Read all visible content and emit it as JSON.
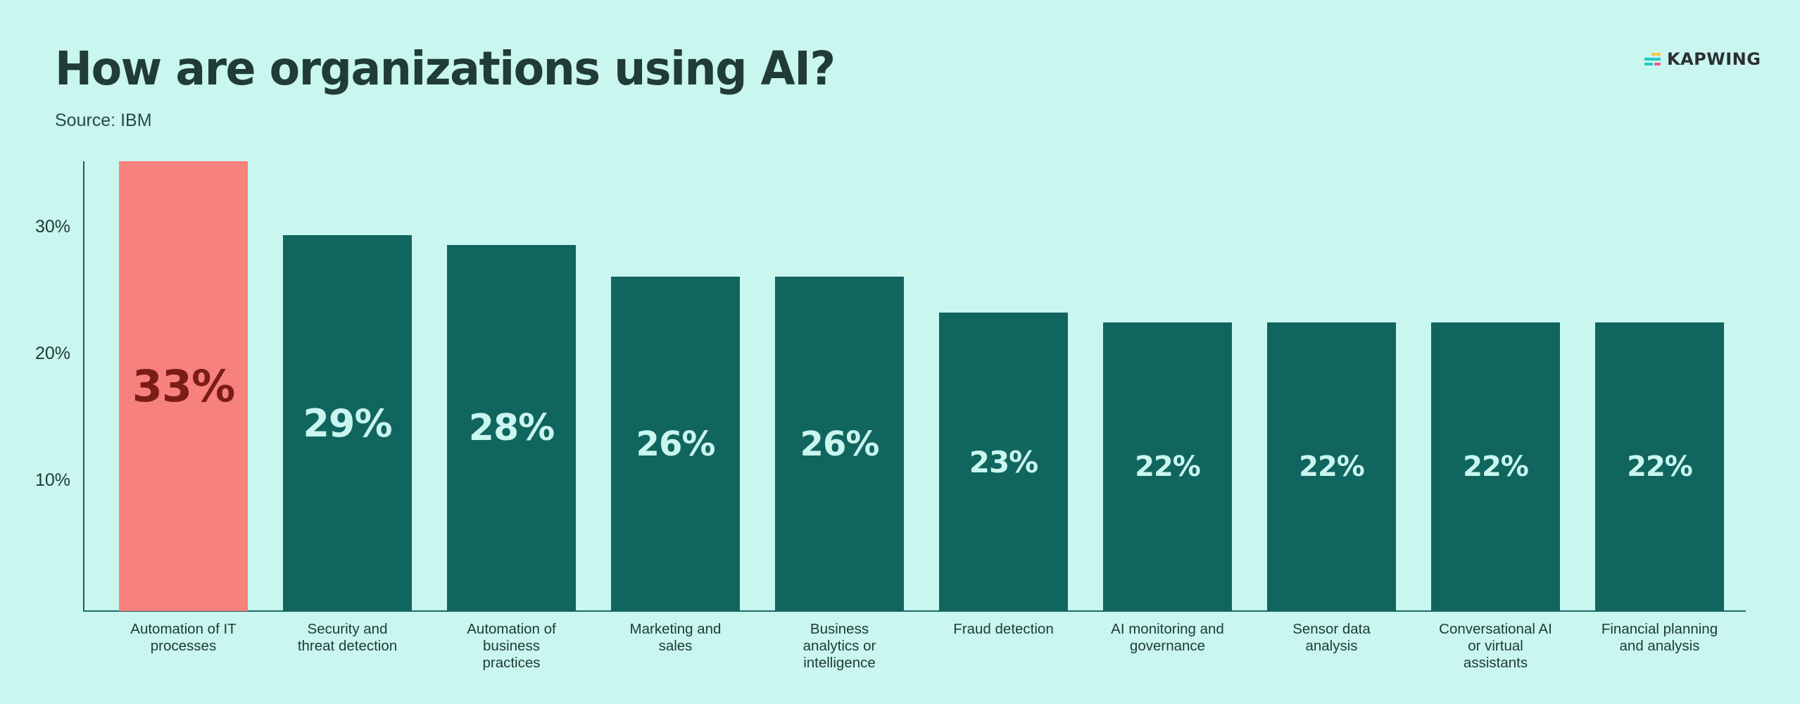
{
  "header": {
    "title": "How are organizations using AI?",
    "subtitle": "Source: IBM"
  },
  "logo": {
    "text": "KAPWING"
  },
  "colors": {
    "background": "#c9f6ef",
    "bar_default": "#11655f",
    "bar_highlight": "#f7817c",
    "label_default": "#c9f6ef",
    "label_highlight": "#7a1c17",
    "text": "#1f3a36"
  },
  "yaxis": {
    "ticks": [
      "30%",
      "20%",
      "10%"
    ]
  },
  "bars": [
    {
      "category": "Automation of IT processes",
      "label_lines": [
        "Automation of IT",
        "processes"
      ],
      "value": 33,
      "value_label": "33%",
      "highlight": true
    },
    {
      "category": "Security and threat detection",
      "label_lines": [
        "Security and",
        "threat detection"
      ],
      "value": 29,
      "value_label": "29%",
      "highlight": false
    },
    {
      "category": "Automation of business practices",
      "label_lines": [
        "Automation of",
        "business",
        "practices"
      ],
      "value": 28,
      "value_label": "28%",
      "highlight": false
    },
    {
      "category": "Marketing and sales",
      "label_lines": [
        "Marketing and",
        "sales"
      ],
      "value": 26,
      "value_label": "26%",
      "highlight": false
    },
    {
      "category": "Business analytics or intelligence",
      "label_lines": [
        "Business",
        "analytics or",
        "intelligence"
      ],
      "value": 26,
      "value_label": "26%",
      "highlight": false
    },
    {
      "category": "Fraud detection",
      "label_lines": [
        "Fraud detection"
      ],
      "value": 23,
      "value_label": "23%",
      "highlight": false
    },
    {
      "category": "AI monitoring and governance",
      "label_lines": [
        "AI monitoring and",
        "governance"
      ],
      "value": 22,
      "value_label": "22%",
      "highlight": false
    },
    {
      "category": "Sensor data analysis",
      "label_lines": [
        "Sensor data",
        "analysis"
      ],
      "value": 22,
      "value_label": "22%",
      "highlight": false
    },
    {
      "category": "Conversational AI or virtual assistants",
      "label_lines": [
        "Conversational AI",
        "or virtual",
        "assistants"
      ],
      "value": 22,
      "value_label": "22%",
      "highlight": false
    },
    {
      "category": "Financial planning and analysis",
      "label_lines": [
        "Financial planning",
        "and analysis"
      ],
      "value": 22,
      "value_label": "22%",
      "highlight": false
    }
  ],
  "chart_data": {
    "type": "bar",
    "title": "How are organizations using AI?",
    "subtitle": "Source: IBM",
    "categories": [
      "Automation of IT processes",
      "Security and threat detection",
      "Automation of business practices",
      "Marketing and sales",
      "Business analytics or intelligence",
      "Fraud detection",
      "AI monitoring and governance",
      "Sensor data analysis",
      "Conversational AI or virtual assistants",
      "Financial planning and analysis"
    ],
    "values": [
      33,
      29,
      28,
      26,
      26,
      23,
      22,
      22,
      22,
      22
    ],
    "value_unit": "%",
    "xlabel": "",
    "ylabel": "",
    "yticks": [
      "10%",
      "20%",
      "30%"
    ],
    "ylim": [
      0,
      35
    ],
    "grid": false,
    "legend": null,
    "highlighted_category": "Automation of IT processes"
  }
}
